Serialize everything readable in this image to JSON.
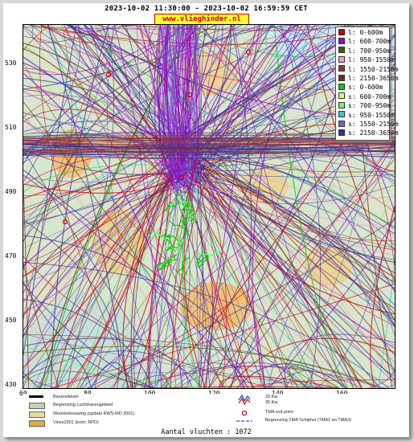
{
  "title": "2023-10-02 11:30:00 - 2023-10-02 16:59:59 CET",
  "url": "www.vlieghinder.nl",
  "y_axis": [
    "530",
    "510",
    "490",
    "470",
    "450",
    "430"
  ],
  "x_axis": [
    "60",
    "80",
    "100",
    "120",
    "140",
    "160"
  ],
  "legend": [
    {
      "label": "l: 0-600m",
      "color": "#cc0000"
    },
    {
      "label": "l: 600-700m",
      "color": "#9900cc"
    },
    {
      "label": "l: 700-950m",
      "color": "#336600"
    },
    {
      "label": "l: 950-1550m",
      "color": "#ff99cc"
    },
    {
      "label": "l: 1550-2150m",
      "color": "#993333"
    },
    {
      "label": "l: 2150-3650m",
      "color": "#663300"
    },
    {
      "label": "s: 0-600m",
      "color": "#00cc00"
    },
    {
      "label": "s: 600-700m",
      "color": "#ccff66"
    },
    {
      "label": "s: 700-950m",
      "color": "#66ff66"
    },
    {
      "label": "s: 950-1550m",
      "color": "#33cccc"
    },
    {
      "label": "s: 1550-2150m",
      "color": "#6666cc"
    },
    {
      "label": "s: 2150-3650m",
      "color": "#333399"
    }
  ],
  "bottom_legend": {
    "runway": "Banenstelsel",
    "airport_boundary": "Begrenzing Luchthavengebied",
    "housing": "Woonbebouwing (update RWS-MD 2001)",
    "vinex": "Vinex2001 (bron: RPD)",
    "kw20": "20 Kw",
    "kw35": "35 Kw",
    "tma_exit": "TMA exit point",
    "tma_boundary": "Begrenzing TMA Schiphol  (TMA1 en TMA3)"
  },
  "flight_count": "Aantal vluchten : 1072"
}
